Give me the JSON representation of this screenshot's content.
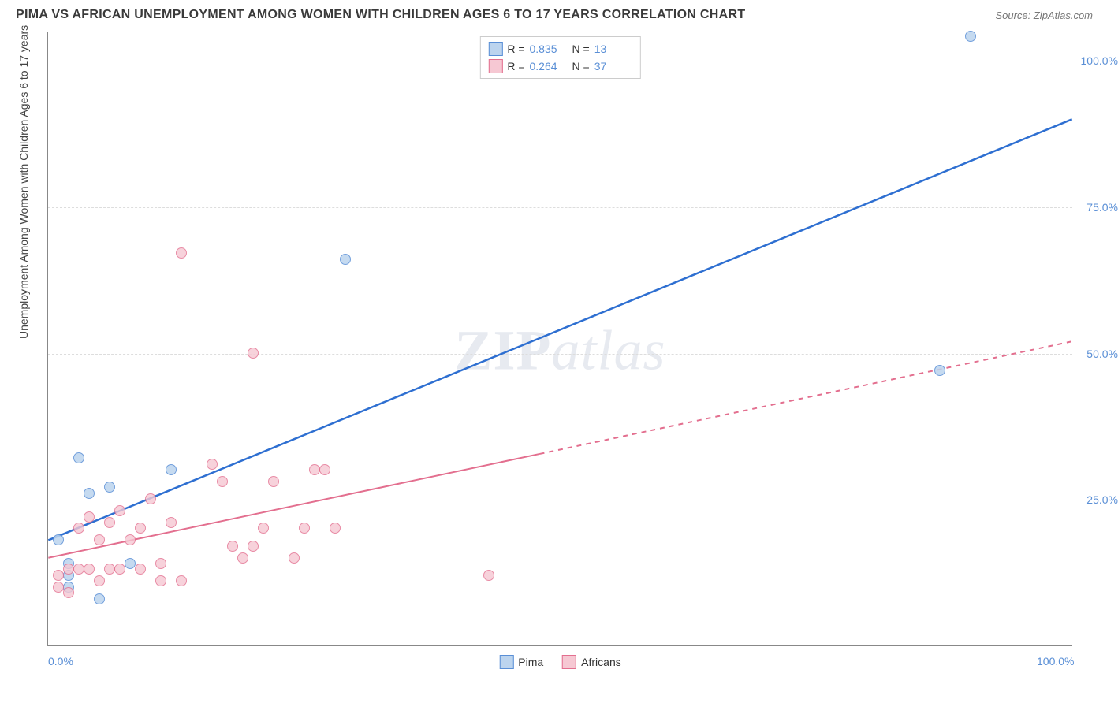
{
  "title": "PIMA VS AFRICAN UNEMPLOYMENT AMONG WOMEN WITH CHILDREN AGES 6 TO 17 YEARS CORRELATION CHART",
  "source": "Source: ZipAtlas.com",
  "y_axis_title": "Unemployment Among Women with Children Ages 6 to 17 years",
  "watermark": {
    "part1": "ZIP",
    "part2": "atlas"
  },
  "chart": {
    "type": "scatter",
    "xlim": [
      0,
      100
    ],
    "ylim": [
      0,
      105
    ],
    "x_ticks": [
      {
        "value": 0,
        "label": "0.0%"
      },
      {
        "value": 100,
        "label": "100.0%"
      }
    ],
    "y_ticks": [
      {
        "value": 25,
        "label": "25.0%"
      },
      {
        "value": 50,
        "label": "50.0%"
      },
      {
        "value": 75,
        "label": "75.0%"
      },
      {
        "value": 100,
        "label": "100.0%"
      }
    ],
    "grid_y_values": [
      25,
      50,
      75,
      100,
      105
    ],
    "grid_color": "#dddddd",
    "background_color": "#ffffff",
    "axis_color": "#888888",
    "tick_label_color": "#5a8fd6",
    "tick_label_fontsize": 14,
    "title_fontsize": 16
  },
  "series": [
    {
      "name": "Pima",
      "marker_fill": "#bcd4ee",
      "marker_stroke": "#5a8fd6",
      "marker_size": 14,
      "marker_opacity": 0.85,
      "line_color": "#2e6fd1",
      "line_width": 2.5,
      "line_dash": "none",
      "stats": {
        "R": "0.835",
        "N": "13"
      },
      "regression": {
        "x1": 0,
        "y1": 18,
        "x2": 100,
        "y2": 90,
        "solid_until_x": 100
      },
      "points": [
        {
          "x": 1,
          "y": 18
        },
        {
          "x": 2,
          "y": 12
        },
        {
          "x": 2,
          "y": 10
        },
        {
          "x": 4,
          "y": 26
        },
        {
          "x": 3,
          "y": 32
        },
        {
          "x": 6,
          "y": 27
        },
        {
          "x": 5,
          "y": 8
        },
        {
          "x": 8,
          "y": 14
        },
        {
          "x": 12,
          "y": 30
        },
        {
          "x": 29,
          "y": 66
        },
        {
          "x": 87,
          "y": 47
        },
        {
          "x": 90,
          "y": 104
        },
        {
          "x": 2,
          "y": 14
        }
      ]
    },
    {
      "name": "Africans",
      "marker_fill": "#f6c8d3",
      "marker_stroke": "#e36f8f",
      "marker_size": 14,
      "marker_opacity": 0.8,
      "line_color": "#e36f8f",
      "line_width": 2,
      "line_dash": "6,6",
      "stats": {
        "R": "0.264",
        "N": "37"
      },
      "regression": {
        "x1": 0,
        "y1": 15,
        "x2": 100,
        "y2": 52,
        "solid_until_x": 48
      },
      "points": [
        {
          "x": 1,
          "y": 10
        },
        {
          "x": 1,
          "y": 12
        },
        {
          "x": 2,
          "y": 9
        },
        {
          "x": 2,
          "y": 13
        },
        {
          "x": 3,
          "y": 13
        },
        {
          "x": 3,
          "y": 20
        },
        {
          "x": 4,
          "y": 13
        },
        {
          "x": 4,
          "y": 22
        },
        {
          "x": 5,
          "y": 11
        },
        {
          "x": 5,
          "y": 18
        },
        {
          "x": 6,
          "y": 13
        },
        {
          "x": 6,
          "y": 21
        },
        {
          "x": 7,
          "y": 13
        },
        {
          "x": 7,
          "y": 23
        },
        {
          "x": 8,
          "y": 18
        },
        {
          "x": 9,
          "y": 13
        },
        {
          "x": 9,
          "y": 20
        },
        {
          "x": 10,
          "y": 25
        },
        {
          "x": 11,
          "y": 11
        },
        {
          "x": 11,
          "y": 14
        },
        {
          "x": 12,
          "y": 21
        },
        {
          "x": 13,
          "y": 11
        },
        {
          "x": 13,
          "y": 67
        },
        {
          "x": 16,
          "y": 31
        },
        {
          "x": 17,
          "y": 28
        },
        {
          "x": 18,
          "y": 17
        },
        {
          "x": 19,
          "y": 15
        },
        {
          "x": 20,
          "y": 17
        },
        {
          "x": 20,
          "y": 50
        },
        {
          "x": 21,
          "y": 20
        },
        {
          "x": 22,
          "y": 28
        },
        {
          "x": 24,
          "y": 15
        },
        {
          "x": 25,
          "y": 20
        },
        {
          "x": 26,
          "y": 30
        },
        {
          "x": 27,
          "y": 30
        },
        {
          "x": 28,
          "y": 20
        },
        {
          "x": 43,
          "y": 12
        }
      ]
    }
  ],
  "legend_top": {
    "r_label": "R =",
    "n_label": "N ="
  },
  "legend_bottom": {
    "items": [
      "Pima",
      "Africans"
    ]
  }
}
